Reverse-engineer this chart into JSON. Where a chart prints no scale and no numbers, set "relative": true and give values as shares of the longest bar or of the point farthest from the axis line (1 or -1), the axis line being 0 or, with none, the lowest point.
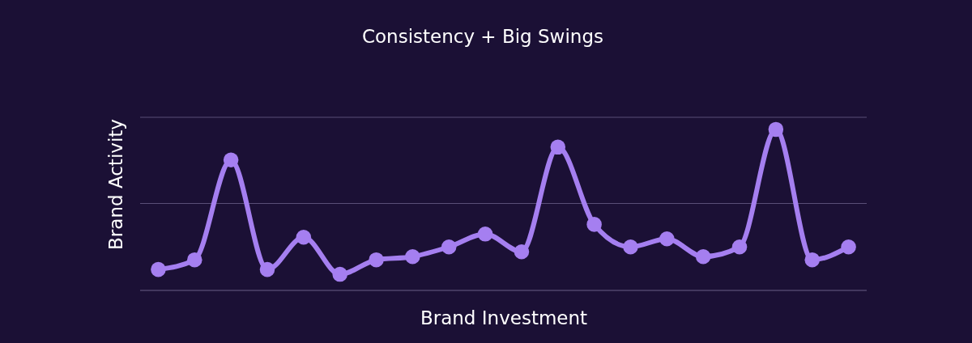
{
  "chart_data": {
    "type": "line",
    "title": "Consistency + Big Swings",
    "xlabel": "Brand Investment",
    "ylabel": "Brand Activity",
    "relative": true,
    "marker": "circle",
    "line_style": "solid",
    "ref_lines": [
      {
        "axis": "y",
        "value": 0.54,
        "color": "#5a4f78"
      },
      {
        "axis": "y",
        "value": 1.075,
        "color": "#5a4f78"
      }
    ],
    "categories": [
      null,
      null,
      null,
      null,
      null,
      null,
      null,
      null,
      null,
      null,
      null,
      null,
      null,
      null,
      null,
      null,
      null,
      null,
      null,
      null
    ],
    "series": [
      {
        "color": "#a57ff0",
        "values": [
          0.13,
          0.19,
          0.81,
          0.13,
          0.33,
          0.1,
          0.19,
          0.21,
          0.27,
          0.35,
          0.24,
          0.89,
          0.41,
          0.27,
          0.32,
          0.21,
          0.27,
          1,
          0.19,
          0.27
        ]
      }
    ]
  }
}
